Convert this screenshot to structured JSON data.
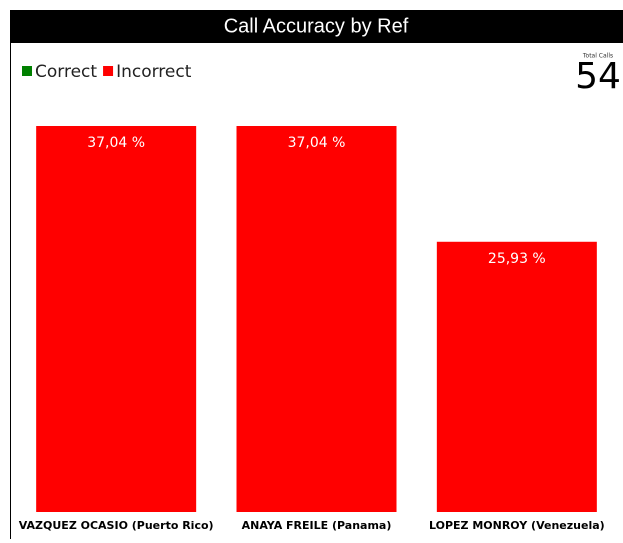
{
  "chart_data": {
    "type": "bar",
    "title": "Call Accuracy by Ref",
    "categories": [
      "VAZQUEZ OCASIO (Puerto Rico)",
      "ANAYA FREILE (Panama)",
      "LOPEZ MONROY (Venezuela)"
    ],
    "series": [
      {
        "name": "Correct",
        "color": "#008000",
        "values": [
          0,
          0,
          0
        ]
      },
      {
        "name": "Incorrect",
        "color": "#ff0000",
        "values": [
          37.04,
          37.04,
          25.93
        ],
        "value_labels": [
          "37,04 %",
          "37,04 %",
          "25,93 %"
        ]
      }
    ],
    "stacked": true,
    "ylim": [
      0,
      37.04
    ],
    "legend": "top-left",
    "total_calls": {
      "label": "Total Calls",
      "value": 54
    }
  }
}
